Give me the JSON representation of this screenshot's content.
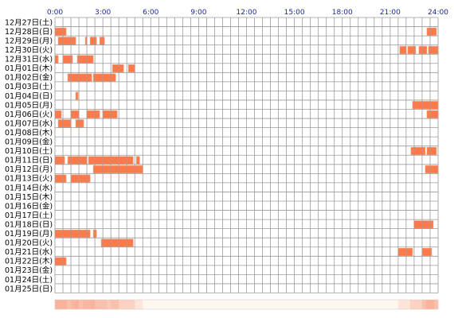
{
  "chart_data": {
    "type": "heatmap",
    "title": "",
    "x_ticks": [
      "0:00",
      "3:00",
      "6:00",
      "9:00",
      "12:00",
      "15:00",
      "18:00",
      "21:00",
      "24:00"
    ],
    "xlim_hours": [
      0,
      24
    ],
    "grid": true,
    "rows": [
      {
        "label": "12月27日(土)",
        "segments": []
      },
      {
        "label": "12月28日(日)",
        "segments": [
          [
            0.0,
            0.7
          ],
          [
            23.3,
            23.9
          ]
        ]
      },
      {
        "label": "12月29日(月)",
        "segments": [
          [
            0.2,
            1.3
          ],
          [
            1.9,
            2.0
          ],
          [
            2.2,
            2.6
          ],
          [
            2.8,
            3.1
          ]
        ]
      },
      {
        "label": "12月30日(火)",
        "segments": [
          [
            21.6,
            22.0
          ],
          [
            22.1,
            22.6
          ],
          [
            22.8,
            23.3
          ],
          [
            23.4,
            24.0
          ]
        ]
      },
      {
        "label": "12月31日(水)",
        "segments": [
          [
            0.0,
            0.2
          ],
          [
            0.5,
            1.1
          ],
          [
            1.4,
            2.4
          ]
        ]
      },
      {
        "label": "01月01日(木)",
        "segments": [
          [
            3.6,
            4.3
          ],
          [
            4.6,
            5.0
          ]
        ]
      },
      {
        "label": "01月02日(金)",
        "segments": [
          [
            0.8,
            2.3
          ],
          [
            2.4,
            3.8
          ]
        ]
      },
      {
        "label": "01月03日(土)",
        "segments": []
      },
      {
        "label": "01月04日(日)",
        "segments": [
          [
            1.3,
            1.45
          ]
        ]
      },
      {
        "label": "01月05日(月)",
        "segments": [
          [
            22.4,
            24.0
          ]
        ]
      },
      {
        "label": "01月06日(火)",
        "segments": [
          [
            0.0,
            0.4
          ],
          [
            1.0,
            1.5
          ],
          [
            2.0,
            2.8
          ],
          [
            3.0,
            3.9
          ],
          [
            23.3,
            24.0
          ]
        ]
      },
      {
        "label": "01月07日(水)",
        "segments": [
          [
            0.2,
            1.0
          ],
          [
            1.3,
            1.8
          ]
        ]
      },
      {
        "label": "01月08日(木)",
        "segments": []
      },
      {
        "label": "01月09日(金)",
        "segments": []
      },
      {
        "label": "01月10日(土)",
        "segments": [
          [
            22.3,
            23.2
          ],
          [
            23.3,
            23.9
          ]
        ]
      },
      {
        "label": "01月11日(日)",
        "segments": [
          [
            0.0,
            0.6
          ],
          [
            0.8,
            2.0
          ],
          [
            2.1,
            4.9
          ],
          [
            5.1,
            5.3
          ]
        ]
      },
      {
        "label": "01月12日(月)",
        "segments": [
          [
            2.4,
            5.5
          ],
          [
            23.2,
            24.0
          ]
        ]
      },
      {
        "label": "01月13日(火)",
        "segments": [
          [
            0.0,
            0.7
          ],
          [
            1.0,
            2.2
          ]
        ]
      },
      {
        "label": "01月14日(水)",
        "segments": []
      },
      {
        "label": "01月15日(木)",
        "segments": []
      },
      {
        "label": "01月16日(金)",
        "segments": []
      },
      {
        "label": "01月17日(土)",
        "segments": []
      },
      {
        "label": "01月18日(日)",
        "segments": [
          [
            22.5,
            23.7
          ]
        ]
      },
      {
        "label": "01月19日(月)",
        "segments": [
          [
            0.0,
            2.2
          ],
          [
            2.4,
            2.6
          ]
        ]
      },
      {
        "label": "01月20日(火)",
        "segments": [
          [
            2.9,
            4.9
          ]
        ]
      },
      {
        "label": "01月21日(水)",
        "segments": [
          [
            21.5,
            22.4
          ],
          [
            23.0,
            23.6
          ]
        ]
      },
      {
        "label": "01月22日(木)",
        "segments": [
          [
            0.0,
            0.7
          ]
        ]
      },
      {
        "label": "01月23日(金)",
        "segments": []
      },
      {
        "label": "01月24日(土)",
        "segments": []
      },
      {
        "label": "01月25日(日)",
        "segments": []
      }
    ],
    "colors": {
      "segment": "#ff7a4a",
      "segment_edge": "#f2a57f",
      "grid": "#9a9a9a",
      "tick_label": "#1a2a8a",
      "row_label": "#000000",
      "strip_light": "#fff6f0",
      "strip_dark": "#fab29a"
    }
  }
}
